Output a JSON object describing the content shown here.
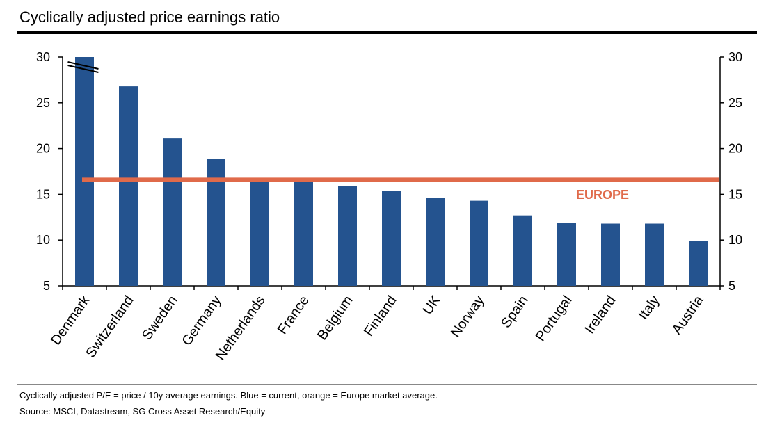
{
  "title": "Cyclically adjusted price earnings ratio",
  "footnote": "Cyclically adjusted P/E = price / 10y average earnings.  Blue = current, orange  = Europe market average.",
  "source": "Source: MSCI, Datastream, SG Cross Asset Research/Equity",
  "colors": {
    "bar": "#24538f",
    "europe_line": "#e06a4a",
    "axis": "#000000"
  },
  "chart_data": {
    "type": "bar",
    "title": "Cyclically adjusted price earnings ratio",
    "categories": [
      "Denmark",
      "Switzerland",
      "Sweden",
      "Germany",
      "Netherlands",
      "France",
      "Belgium",
      "Finland",
      "UK",
      "Norway",
      "Spain",
      "Portugal",
      "Ireland",
      "Italy",
      "Austria"
    ],
    "values": [
      30,
      26.8,
      21.1,
      18.9,
      16.4,
      16.4,
      15.9,
      15.4,
      14.6,
      14.3,
      12.7,
      11.9,
      11.8,
      11.8,
      9.9
    ],
    "ylim": [
      5,
      30
    ],
    "yticks": [
      "5",
      "10",
      "15",
      "20",
      "25",
      "30"
    ],
    "y_axes": "both",
    "axis_break": "Denmark",
    "reference_line": {
      "label": "EUROPE",
      "value": 16.6
    },
    "grid": false,
    "xlabel": "",
    "ylabel": ""
  }
}
